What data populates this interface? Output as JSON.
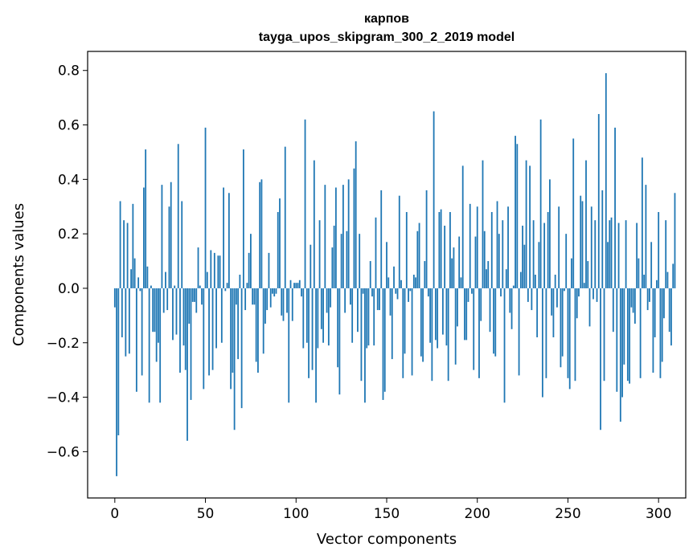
{
  "chart_data": {
    "type": "bar",
    "title": "карпов",
    "subtitle": "tayga_upos_skipgram_300_2_2019 model",
    "xlabel": "Vector components",
    "ylabel": "Components values",
    "xlim": [
      -15,
      315
    ],
    "ylim": [
      -0.77,
      0.87
    ],
    "xticks": [
      0,
      50,
      100,
      150,
      200,
      250,
      300
    ],
    "yticks": [
      -0.6,
      -0.4,
      -0.2,
      0.0,
      0.2,
      0.4,
      0.6,
      0.8
    ],
    "ytick_labels": [
      "−0.6",
      "−0.4",
      "−0.2",
      "0.0",
      "0.2",
      "0.4",
      "0.6",
      "0.8"
    ],
    "grid": false,
    "bar_color": "#1f77b4",
    "series": [
      {
        "values": [
          -0.07,
          -0.69,
          -0.54,
          0.32,
          -0.18,
          0.25,
          -0.25,
          0.24,
          -0.24,
          0.07,
          0.31,
          0.11,
          -0.38,
          0.04,
          -0.01,
          -0.32,
          0.37,
          0.51,
          0.08,
          -0.42,
          0.01,
          -0.16,
          -0.16,
          -0.27,
          -0.2,
          -0.42,
          0.38,
          -0.09,
          0.06,
          -0.08,
          0.3,
          0.39,
          -0.19,
          0.01,
          -0.17,
          0.53,
          -0.31,
          0.32,
          -0.21,
          -0.3,
          -0.56,
          -0.13,
          -0.41,
          -0.05,
          -0.05,
          -0.09,
          0.15,
          0.01,
          -0.06,
          -0.37,
          0.59,
          0.06,
          -0.32,
          0.14,
          -0.3,
          0.13,
          -0.22,
          0.12,
          0.12,
          -0.2,
          0.37,
          -0.01,
          0.02,
          0.35,
          -0.37,
          -0.31,
          -0.52,
          -0.06,
          -0.26,
          0.05,
          -0.44,
          0.51,
          -0.08,
          0.02,
          0.13,
          0.2,
          -0.06,
          -0.06,
          -0.27,
          -0.31,
          0.39,
          0.4,
          -0.24,
          -0.13,
          -0.08,
          0.13,
          -0.07,
          -0.02,
          -0.03,
          -0.02,
          0.28,
          0.33,
          -0.1,
          -0.12,
          0.52,
          -0.09,
          -0.42,
          0.03,
          -0.12,
          0.02,
          0.02,
          0.02,
          0.03,
          -0.03,
          -0.22,
          0.62,
          -0.2,
          -0.33,
          0.16,
          -0.3,
          0.47,
          -0.42,
          -0.22,
          0.25,
          -0.15,
          -0.2,
          0.38,
          -0.09,
          -0.21,
          -0.07,
          0.15,
          0.23,
          0.37,
          -0.29,
          -0.39,
          0.2,
          0.38,
          -0.09,
          0.21,
          0.4,
          -0.06,
          -0.2,
          0.44,
          0.54,
          -0.16,
          0.2,
          -0.34,
          -0.02,
          -0.42,
          -0.22,
          -0.21,
          0.1,
          -0.03,
          -0.21,
          0.26,
          -0.08,
          -0.08,
          0.36,
          -0.41,
          -0.38,
          0.17,
          0.04,
          -0.1,
          -0.26,
          0.08,
          -0.02,
          -0.04,
          0.34,
          0.03,
          -0.33,
          -0.24,
          0.28,
          -0.05,
          -0.01,
          -0.32,
          0.05,
          0.04,
          0.21,
          0.24,
          -0.25,
          -0.27,
          0.1,
          0.36,
          -0.03,
          -0.2,
          -0.34,
          0.65,
          -0.19,
          -0.22,
          0.28,
          0.29,
          -0.17,
          0.23,
          -0.21,
          -0.34,
          0.28,
          0.11,
          0.15,
          -0.28,
          -0.14,
          0.19,
          0.04,
          0.45,
          -0.19,
          -0.19,
          -0.05,
          0.31,
          -0.02,
          -0.3,
          0.19,
          0.3,
          -0.33,
          -0.12,
          0.47,
          0.21,
          0.07,
          0.1,
          -0.16,
          0.28,
          -0.24,
          -0.25,
          0.32,
          0.2,
          -0.03,
          0.25,
          -0.42,
          0.07,
          0.3,
          -0.09,
          -0.15,
          0.01,
          0.56,
          0.53,
          -0.32,
          0.06,
          0.23,
          0.16,
          0.47,
          -0.05,
          0.45,
          -0.08,
          0.25,
          0.05,
          -0.18,
          0.17,
          0.62,
          -0.4,
          0.24,
          -0.33,
          0.28,
          0.4,
          -0.1,
          -0.18,
          0.05,
          -0.07,
          0.3,
          -0.29,
          -0.25,
          -0.01,
          0.2,
          -0.33,
          -0.37,
          0.11,
          0.55,
          -0.34,
          -0.11,
          -0.03,
          0.34,
          0.32,
          0.02,
          0.47,
          0.1,
          -0.14,
          0.3,
          -0.04,
          0.25,
          -0.05,
          0.64,
          -0.52,
          0.36,
          -0.34,
          0.79,
          0.17,
          0.25,
          0.26,
          -0.16,
          0.59,
          -0.38,
          0.24,
          -0.49,
          -0.4,
          -0.28,
          0.25,
          -0.34,
          -0.35,
          -0.07,
          -0.09,
          -0.13,
          0.24,
          0.11,
          -0.33,
          0.48,
          0.05,
          0.38,
          -0.08,
          -0.05,
          0.17,
          -0.31,
          -0.18,
          0.03,
          0.28,
          -0.33,
          -0.27,
          -0.11,
          0.25,
          0.06,
          -0.16,
          -0.21,
          0.09,
          0.35
        ]
      }
    ]
  }
}
